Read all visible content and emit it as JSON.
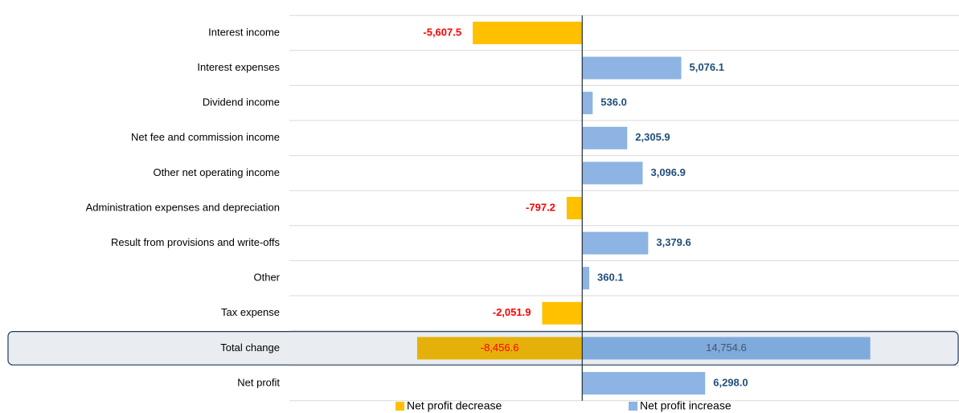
{
  "chart_data": {
    "type": "diverging_bar",
    "categories": [
      "Interest income",
      "Interest expenses",
      "Dividend income",
      "Net fee and commission income",
      "Other net operating income",
      "Administration expenses and depreciation",
      "Result from provisions and write-offs",
      "Other",
      "Tax expense",
      "Total change",
      "Net profit"
    ],
    "series": [
      {
        "name": "Net profit decrease",
        "color": "#FFC000",
        "values": [
          -5607.5,
          null,
          null,
          null,
          null,
          -797.2,
          null,
          null,
          -2051.9,
          -8456.6,
          null
        ],
        "value_labels": [
          "-5,607.5",
          null,
          null,
          null,
          null,
          "-797.2",
          null,
          null,
          "-2,051.9",
          "-8,456.6",
          null
        ]
      },
      {
        "name": "Net profit increase",
        "color": "#8DB4E2",
        "values": [
          null,
          5076.1,
          536.0,
          2305.9,
          3096.9,
          null,
          3379.6,
          360.1,
          null,
          14754.6,
          6298.0
        ],
        "value_labels": [
          null,
          "5,076.1",
          "536.0",
          "2,305.9",
          "3,096.9",
          null,
          "3,379.6",
          "360.1",
          null,
          "14,754.6",
          "6,298.0"
        ]
      }
    ],
    "xlim": [
      -15000,
      19300
    ]
  }
}
